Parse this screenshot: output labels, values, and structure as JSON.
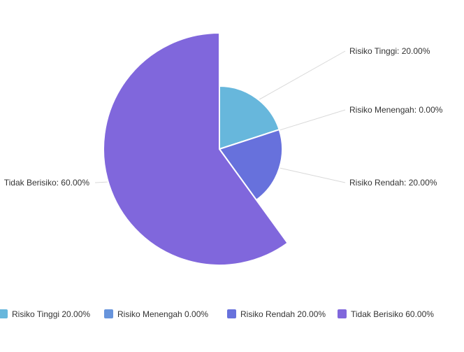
{
  "chart_data": {
    "type": "pie",
    "variant": "rose-radius",
    "title": "",
    "slices": [
      {
        "name": "Risiko Tinggi",
        "value": 20.0,
        "label": "Risiko Tinggi: 20.00%",
        "legend": "Risiko Tinggi  20.00%",
        "color": "#67b7dc"
      },
      {
        "name": "Risiko Menengah",
        "value": 0.0,
        "label": "Risiko Menengah: 0.00%",
        "legend": "Risiko Menengah  0.00%",
        "color": "#6794dc"
      },
      {
        "name": "Risiko Rendah",
        "value": 20.0,
        "label": "Risiko Rendah: 20.00%",
        "legend": "Risiko Rendah  20.00%",
        "color": "#6771dc"
      },
      {
        "name": "Tidak Berisiko",
        "value": 60.0,
        "label": "Tidak Berisiko: 60.00%",
        "legend": "Tidak Berisiko  60.00%",
        "color": "#8067dc"
      }
    ],
    "legend_position": "bottom",
    "unit": "%"
  }
}
